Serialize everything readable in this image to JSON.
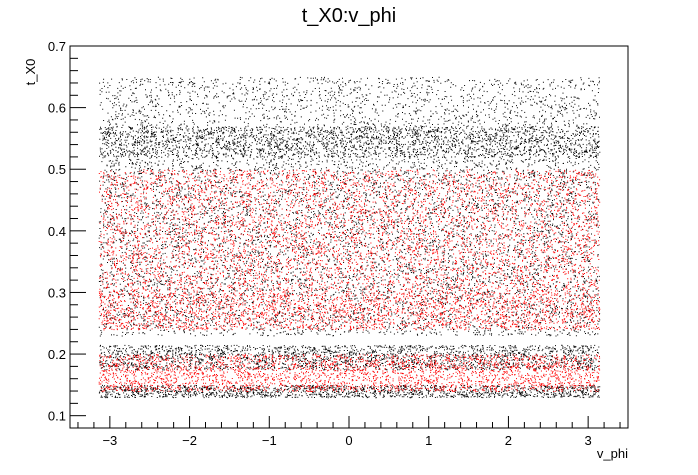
{
  "chart_data": {
    "type": "scatter",
    "title": "t_X0:v_phi",
    "xlabel": "v_phi",
    "ylabel": "t_X0",
    "xlim": [
      -3.5,
      3.5
    ],
    "ylim": [
      0.08,
      0.7
    ],
    "x_ticks": [
      -3,
      -2,
      -1,
      0,
      1,
      2,
      3
    ],
    "y_ticks": [
      0.1,
      0.2,
      0.3,
      0.4,
      0.5,
      0.6,
      0.7
    ],
    "x_range_data": [
      -3.14,
      3.14
    ],
    "grid": false,
    "legend": "none",
    "series": [
      {
        "color": "#000000",
        "density_bands": [
          {
            "y_min": 0.13,
            "y_max": 0.15,
            "weight": 0.5
          },
          {
            "y_min": 0.175,
            "y_max": 0.215,
            "weight": 0.7
          },
          {
            "y_min": 0.23,
            "y_max": 0.38,
            "weight": 1.0
          },
          {
            "y_min": 0.38,
            "y_max": 0.52,
            "weight": 1.0
          },
          {
            "y_min": 0.52,
            "y_max": 0.57,
            "weight": 0.9
          },
          {
            "y_min": 0.57,
            "y_max": 0.65,
            "weight": 0.45
          }
        ]
      },
      {
        "color": "#ff0000",
        "density_bands": [
          {
            "y_min": 0.14,
            "y_max": 0.2,
            "weight": 0.9
          },
          {
            "y_min": 0.24,
            "y_max": 0.3,
            "weight": 0.8
          },
          {
            "y_min": 0.3,
            "y_max": 0.38,
            "weight": 0.7
          },
          {
            "y_min": 0.38,
            "y_max": 0.5,
            "weight": 1.0
          }
        ]
      }
    ]
  }
}
